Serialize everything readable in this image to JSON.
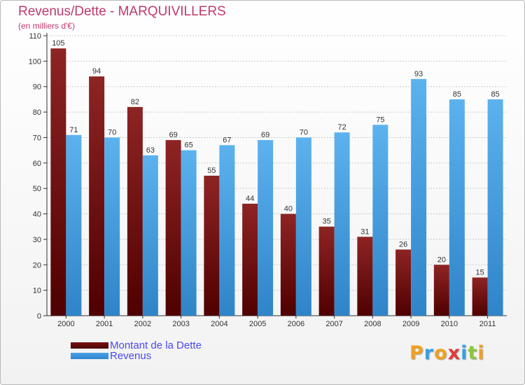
{
  "title": "Revenus/Dette - MARQUIVILLERS",
  "subtitle": "(en milliers d'€)",
  "legend": {
    "dette_label": "Montant de la Dette",
    "revenus_label": "Revenus"
  },
  "logo": {
    "letters": [
      "P",
      "r",
      "o",
      "x",
      "i",
      "t",
      "i"
    ],
    "colors": [
      "#f0a020",
      "#3aa0e0",
      "#f0a020",
      "#e23a3a",
      "#3aa0e0",
      "#8cc63e",
      "#f0a020"
    ]
  },
  "colors": {
    "dette": "#7a1010",
    "revenus": "#4aa3e6",
    "title": "#c0386e",
    "legend_text": "#4a4af0"
  },
  "chart_data": {
    "type": "bar",
    "title": "Revenus/Dette - MARQUIVILLERS",
    "subtitle": "(en milliers d'€)",
    "categories": [
      "2000",
      "2001",
      "2002",
      "2003",
      "2004",
      "2005",
      "2006",
      "2007",
      "2008",
      "2009",
      "2010",
      "2011"
    ],
    "series": [
      {
        "name": "Montant de la Dette",
        "values": [
          105,
          94,
          82,
          69,
          55,
          44,
          40,
          35,
          31,
          26,
          20,
          15
        ]
      },
      {
        "name": "Revenus",
        "values": [
          71,
          70,
          63,
          65,
          67,
          69,
          70,
          72,
          75,
          93,
          85,
          85
        ]
      }
    ],
    "ylim": [
      0,
      110
    ],
    "yticks": [
      0,
      10,
      20,
      30,
      40,
      50,
      60,
      70,
      80,
      90,
      100,
      110
    ],
    "grid": true,
    "legend_position": "bottom-left"
  }
}
